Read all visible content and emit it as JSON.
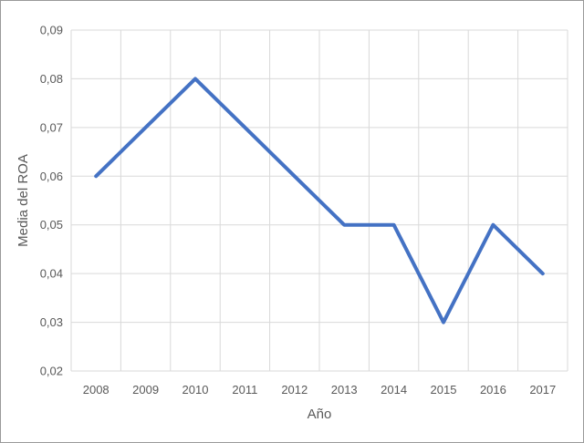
{
  "chart_data": {
    "type": "line",
    "title": "",
    "xlabel": "Año",
    "ylabel": "Media del ROA",
    "categories": [
      "2008",
      "2009",
      "2010",
      "2011",
      "2012",
      "2013",
      "2014",
      "2015",
      "2016",
      "2017"
    ],
    "series": [
      {
        "values": [
          0.06,
          0.07,
          0.08,
          0.07,
          0.06,
          0.05,
          0.05,
          0.03,
          0.05,
          0.04
        ],
        "color": "#4472C4"
      }
    ],
    "ylim": [
      0.02,
      0.09
    ],
    "yticks": [
      "0,02",
      "0,03",
      "0,04",
      "0,05",
      "0,06",
      "0,07",
      "0,08",
      "0,09"
    ],
    "grid": true,
    "legend": "none"
  }
}
